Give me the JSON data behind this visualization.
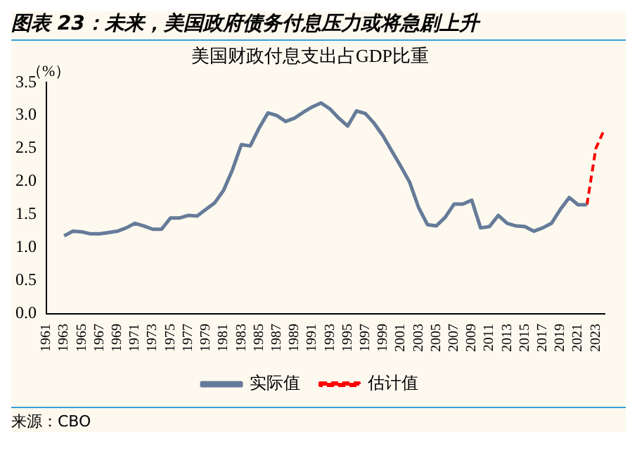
{
  "chart_data": {
    "type": "line",
    "title": "图表 23：未来，美国政府债务付息压力或将急剧上升",
    "subtitle": "美国财政付息支出占GDP比重",
    "ylabel": "（%）",
    "categories": [
      "1961",
      null,
      "1963",
      null,
      "1965",
      null,
      "1967",
      null,
      "1969",
      null,
      "1971",
      null,
      "1973",
      null,
      "1975",
      null,
      "1977",
      null,
      "1979",
      null,
      "1981",
      null,
      "1983",
      null,
      "1985",
      null,
      "1987",
      null,
      "1989",
      null,
      "1991",
      null,
      "1993",
      null,
      "1995",
      null,
      "1997",
      null,
      "1999",
      null,
      "2001",
      null,
      "2003",
      null,
      "2005",
      null,
      "2007",
      null,
      "2009",
      null,
      "2011",
      null,
      "2013",
      null,
      "2015",
      null,
      "2017",
      null,
      "2019",
      null,
      "2021",
      null,
      "2023",
      null
    ],
    "series": [
      {
        "name": "实际值",
        "color": "#667b99",
        "line_style": "solid",
        "values": [
          null,
          null,
          1.18,
          1.25,
          1.24,
          1.21,
          1.21,
          1.23,
          1.25,
          1.3,
          1.37,
          1.33,
          1.28,
          1.28,
          1.45,
          1.45,
          1.49,
          1.48,
          1.58,
          1.68,
          1.87,
          2.18,
          2.56,
          2.54,
          2.81,
          3.04,
          3.0,
          2.91,
          2.96,
          3.05,
          3.13,
          3.19,
          3.1,
          2.96,
          2.84,
          3.07,
          3.03,
          2.88,
          2.69,
          2.46,
          2.23,
          1.99,
          1.61,
          1.35,
          1.33,
          1.46,
          1.66,
          1.66,
          1.72,
          1.3,
          1.32,
          1.49,
          1.37,
          1.33,
          1.32,
          1.25,
          1.3,
          1.37,
          1.58,
          1.76,
          1.65,
          1.65,
          null,
          null
        ]
      },
      {
        "name": "估计值",
        "color": "#ff0000",
        "line_style": "dashed",
        "values": [
          null,
          null,
          null,
          null,
          null,
          null,
          null,
          null,
          null,
          null,
          null,
          null,
          null,
          null,
          null,
          null,
          null,
          null,
          null,
          null,
          null,
          null,
          null,
          null,
          null,
          null,
          null,
          null,
          null,
          null,
          null,
          null,
          null,
          null,
          null,
          null,
          null,
          null,
          null,
          null,
          null,
          null,
          null,
          null,
          null,
          null,
          null,
          null,
          null,
          null,
          null,
          null,
          null,
          null,
          null,
          null,
          null,
          null,
          null,
          null,
          null,
          1.65,
          2.5,
          2.8
        ]
      }
    ],
    "ylim": [
      0,
      3.5
    ],
    "yticks": [
      {
        "value": 0,
        "label": "0.0"
      },
      {
        "value": 0.5,
        "label": "0.5"
      },
      {
        "value": 1,
        "label": "1.0"
      },
      {
        "value": 1.5,
        "label": "1.5"
      },
      {
        "value": 2,
        "label": "2.0"
      },
      {
        "value": 2.5,
        "label": "2.5"
      },
      {
        "value": 3,
        "label": "3.0"
      },
      {
        "value": 3.5,
        "label": "3.5"
      }
    ],
    "grid": false,
    "legend": "bottom",
    "marker": "none",
    "annotations": [
      "来源：CBO"
    ]
  }
}
